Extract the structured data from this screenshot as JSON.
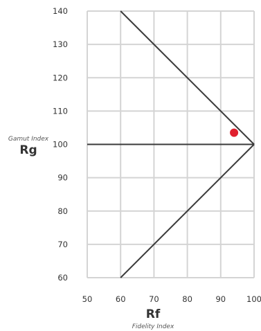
{
  "chart_data": {
    "type": "scatter",
    "xlabel": "Rf",
    "xlabel_sub": "Fidelity Index",
    "ylabel": "Rg",
    "ylabel_sub": "Gamut Index",
    "xlim": [
      50,
      100
    ],
    "ylim": [
      60,
      140
    ],
    "xticks": [
      "50",
      "60",
      "70",
      "80",
      "90",
      "100"
    ],
    "yticks": [
      "60",
      "70",
      "80",
      "90",
      "100",
      "110",
      "120",
      "130",
      "140"
    ],
    "grid": true,
    "reference_lines": [
      {
        "points": [
          [
            60,
            140
          ],
          [
            100,
            100
          ]
        ]
      },
      {
        "points": [
          [
            60,
            60
          ],
          [
            100,
            100
          ]
        ]
      },
      {
        "points": [
          [
            50,
            100
          ],
          [
            100,
            100
          ]
        ]
      }
    ],
    "points": [
      {
        "x": 94,
        "y": 103.5
      }
    ],
    "colors": {
      "grid": "#d4d4d4",
      "lines": "#3a3a3a",
      "point": "#e0202e",
      "text": "#333333"
    }
  }
}
